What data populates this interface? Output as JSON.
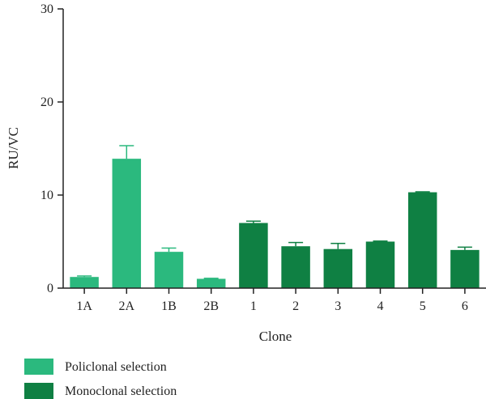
{
  "chart_data": {
    "type": "bar",
    "title": "",
    "xlabel": "Clone",
    "ylabel": "RU/VC",
    "ylim": [
      0,
      30
    ],
    "yticks": [
      0,
      10,
      20,
      30
    ],
    "grid": false,
    "legend_position": "bottom-left",
    "categories": [
      "1A",
      "2A",
      "1B",
      "2B",
      "1",
      "2",
      "3",
      "4",
      "5",
      "6"
    ],
    "values": [
      1.2,
      13.9,
      3.9,
      1.0,
      7.0,
      4.5,
      4.2,
      5.0,
      10.3,
      4.1
    ],
    "errors": [
      0.1,
      1.4,
      0.4,
      0.05,
      0.2,
      0.4,
      0.6,
      0.05,
      0.05,
      0.3
    ],
    "groups": [
      {
        "name": "Policlonal selection",
        "color": "#2bb97e",
        "indices": [
          0,
          1,
          2,
          3
        ]
      },
      {
        "name": "Monoclonal selection",
        "color": "#0f8043",
        "indices": [
          4,
          5,
          6,
          7,
          8,
          9
        ]
      }
    ]
  }
}
